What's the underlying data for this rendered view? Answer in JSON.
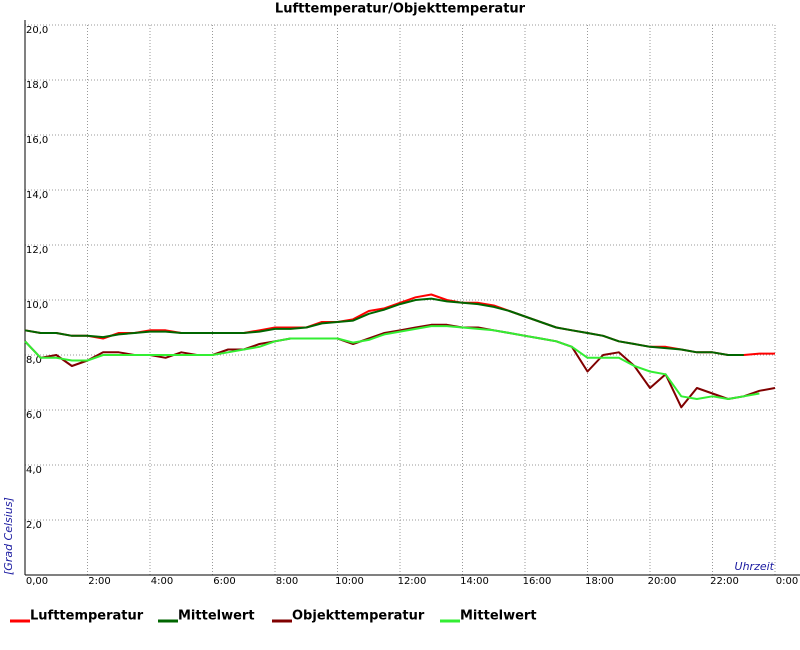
{
  "chart_data": {
    "type": "line",
    "title": "Lufttemperatur/Objekttemperatur",
    "y_label": "[Grad Celsius]",
    "x_label": "Uhrzeit",
    "x": [
      0,
      0.5,
      1,
      1.5,
      2,
      2.5,
      3,
      3.5,
      4,
      4.5,
      5,
      5.5,
      6,
      6.5,
      7,
      7.5,
      8,
      8.5,
      9,
      9.5,
      10,
      10.5,
      11,
      11.5,
      12,
      12.5,
      13,
      13.5,
      14,
      14.5,
      15,
      15.5,
      16,
      16.5,
      17,
      17.5,
      18,
      18.5,
      19,
      19.5,
      20,
      20.5,
      21,
      21.5,
      22,
      22.5,
      23,
      23.5,
      24
    ],
    "series": [
      {
        "name": "Lufttemperatur",
        "color": "#ff0000",
        "values": [
          8.9,
          8.8,
          8.8,
          8.7,
          8.7,
          8.6,
          8.8,
          8.8,
          8.9,
          8.9,
          8.8,
          8.8,
          8.8,
          8.8,
          8.8,
          8.9,
          9.0,
          9.0,
          9.0,
          9.2,
          9.2,
          9.3,
          9.6,
          9.7,
          9.9,
          10.1,
          10.2,
          10.0,
          9.9,
          9.9,
          9.8,
          9.6,
          9.4,
          9.2,
          9.0,
          8.9,
          8.8,
          8.7,
          8.5,
          8.4,
          8.3,
          8.3,
          8.2,
          8.1,
          8.1,
          8.0,
          8.0,
          8.05,
          8.05
        ]
      },
      {
        "name": "Mittelwert",
        "color": "#006600",
        "values": [
          8.9,
          8.8,
          8.8,
          8.7,
          8.7,
          8.65,
          8.75,
          8.8,
          8.85,
          8.85,
          8.8,
          8.8,
          8.8,
          8.8,
          8.8,
          8.85,
          8.95,
          8.95,
          9.0,
          9.15,
          9.2,
          9.25,
          9.5,
          9.65,
          9.85,
          10.0,
          10.05,
          9.95,
          9.9,
          9.85,
          9.75,
          9.6,
          9.4,
          9.2,
          9.0,
          8.9,
          8.8,
          8.7,
          8.5,
          8.4,
          8.3,
          8.25,
          8.2,
          8.1,
          8.1,
          8.0,
          8.0,
          null,
          null
        ]
      },
      {
        "name": "Objekttemperatur",
        "color": "#800000",
        "values": [
          8.5,
          7.9,
          8.0,
          7.6,
          7.8,
          8.1,
          8.1,
          8.0,
          8.0,
          7.9,
          8.1,
          8.0,
          8.0,
          8.2,
          8.2,
          8.4,
          8.5,
          8.6,
          8.6,
          8.6,
          8.6,
          8.4,
          8.6,
          8.8,
          8.9,
          9.0,
          9.1,
          9.1,
          9.0,
          9.0,
          8.9,
          8.8,
          8.7,
          8.6,
          8.5,
          8.3,
          7.4,
          8.0,
          8.1,
          7.6,
          6.8,
          7.3,
          6.1,
          6.8,
          6.6,
          6.4,
          6.5,
          6.7,
          6.8
        ]
      },
      {
        "name": "Mittelwert",
        "color": "#33ee33",
        "values": [
          8.5,
          7.9,
          7.9,
          7.8,
          7.8,
          8.0,
          8.0,
          8.0,
          8.0,
          8.0,
          8.0,
          8.0,
          8.0,
          8.1,
          8.2,
          8.3,
          8.5,
          8.6,
          8.6,
          8.6,
          8.6,
          8.45,
          8.55,
          8.75,
          8.85,
          8.95,
          9.05,
          9.05,
          9.0,
          8.95,
          8.9,
          8.8,
          8.7,
          8.6,
          8.5,
          8.3,
          7.9,
          7.9,
          7.9,
          7.6,
          7.4,
          7.3,
          6.5,
          6.4,
          6.5,
          6.4,
          6.5,
          6.6,
          null
        ]
      }
    ],
    "xlim": [
      0,
      24
    ],
    "xticks": [
      {
        "value": 0,
        "label": "0,00"
      },
      {
        "value": 2,
        "label": "2:00"
      },
      {
        "value": 4,
        "label": "4:00"
      },
      {
        "value": 6,
        "label": "6:00"
      },
      {
        "value": 8,
        "label": "8:00"
      },
      {
        "value": 10,
        "label": "10:00"
      },
      {
        "value": 12,
        "label": "12:00"
      },
      {
        "value": 14,
        "label": "14:00"
      },
      {
        "value": 16,
        "label": "16:00"
      },
      {
        "value": 18,
        "label": "18:00"
      },
      {
        "value": 20,
        "label": "20:00"
      },
      {
        "value": 22,
        "label": "22:00"
      },
      {
        "value": 24,
        "label": "0:00"
      }
    ],
    "ylim": [
      0,
      20
    ],
    "yticks": [
      {
        "value": 2,
        "label": "2,0"
      },
      {
        "value": 4,
        "label": "4,0"
      },
      {
        "value": 6,
        "label": "6,0"
      },
      {
        "value": 8,
        "label": "8,0"
      },
      {
        "value": 10,
        "label": "10,0"
      },
      {
        "value": 12,
        "label": "12,0"
      },
      {
        "value": 14,
        "label": "14,0"
      },
      {
        "value": 16,
        "label": "16,0"
      },
      {
        "value": 18,
        "label": "18,0"
      },
      {
        "value": 20,
        "label": "20,0"
      }
    ],
    "grid": true
  }
}
